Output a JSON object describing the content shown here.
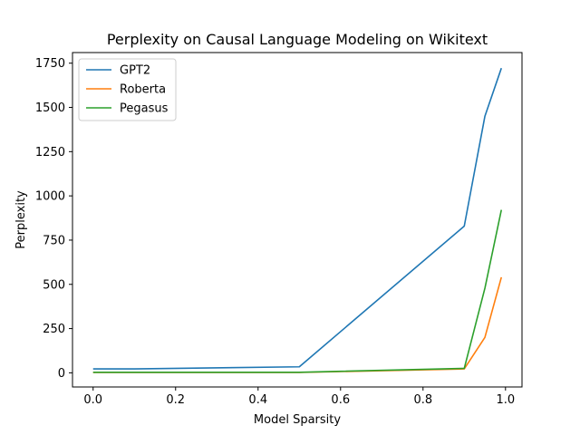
{
  "chart_data": {
    "type": "line",
    "title": "Perplexity on Causal Language Modeling on Wikitext",
    "xlabel": "Model Sparsity",
    "ylabel": "Perplexity",
    "xlim": [
      -0.05,
      1.04
    ],
    "ylim": [
      -80,
      1810
    ],
    "xticks": [
      0.0,
      0.2,
      0.4,
      0.6,
      0.8,
      1.0
    ],
    "xtick_labels": [
      "0.0",
      "0.2",
      "0.4",
      "0.6",
      "0.8",
      "1.0"
    ],
    "yticks": [
      0,
      250,
      500,
      750,
      1000,
      1250,
      1500,
      1750
    ],
    "ytick_labels": [
      "0",
      "250",
      "500",
      "750",
      "1000",
      "1250",
      "1500",
      "1750"
    ],
    "grid": false,
    "legend_position": "top-left",
    "series": [
      {
        "name": "GPT2",
        "color": "#1f77b4",
        "x": [
          0.0,
          0.1,
          0.5,
          0.9,
          0.95,
          0.99
        ],
        "y": [
          22,
          22,
          34,
          829,
          1450,
          1722
        ]
      },
      {
        "name": "Roberta",
        "color": "#ff7f0e",
        "x": [
          0.0,
          0.1,
          0.5,
          0.9,
          0.95,
          0.99
        ],
        "y": [
          2,
          2,
          2,
          22,
          200,
          540
        ]
      },
      {
        "name": "Pegasus",
        "color": "#2ca02c",
        "x": [
          0.0,
          0.1,
          0.5,
          0.9,
          0.95,
          0.99
        ],
        "y": [
          3,
          3,
          3,
          25,
          478,
          921
        ]
      }
    ]
  }
}
